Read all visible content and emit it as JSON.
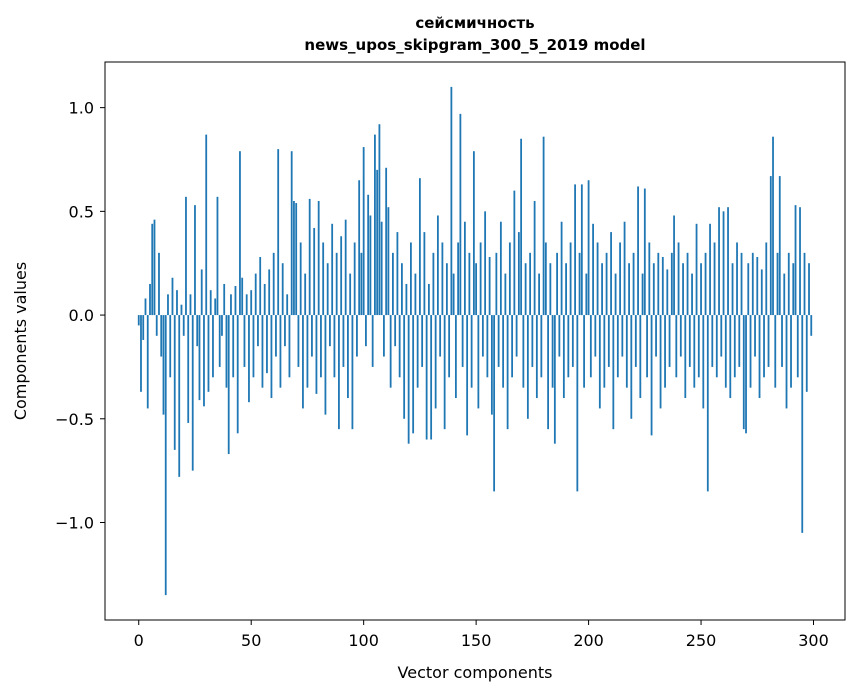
{
  "title_line1": "сейсмичность",
  "title_line2": "news_upos_skipgram_300_5_2019 model",
  "chart_data": {
    "type": "bar",
    "title": "сейсмичность\nnews_upos_skipgram_300_5_2019 model",
    "xlabel": "Vector components",
    "ylabel": "Components values",
    "xlim": [
      -15,
      314
    ],
    "ylim": [
      -1.47,
      1.22
    ],
    "x_ticks": [
      0,
      50,
      100,
      150,
      200,
      250,
      300
    ],
    "y_ticks": [
      -1.0,
      -0.5,
      0.0,
      0.5,
      1.0
    ],
    "bar_color": "#1f77b4",
    "grid": false,
    "legend": "none",
    "values": [
      -0.05,
      -0.37,
      -0.12,
      0.08,
      -0.45,
      0.15,
      0.44,
      0.46,
      -0.1,
      0.3,
      -0.2,
      -0.48,
      -1.35,
      0.1,
      -0.3,
      0.18,
      -0.65,
      0.12,
      -0.78,
      0.05,
      -0.1,
      0.57,
      -0.52,
      0.1,
      -0.75,
      0.53,
      -0.15,
      -0.41,
      0.22,
      -0.44,
      0.87,
      -0.37,
      0.12,
      -0.3,
      0.08,
      0.57,
      -0.25,
      -0.1,
      0.15,
      -0.35,
      -0.67,
      0.1,
      -0.3,
      0.14,
      -0.57,
      0.79,
      0.18,
      -0.25,
      0.1,
      -0.42,
      0.12,
      -0.3,
      0.2,
      -0.15,
      0.28,
      -0.35,
      0.15,
      -0.28,
      0.22,
      -0.4,
      0.3,
      -0.2,
      0.8,
      -0.35,
      0.25,
      -0.15,
      0.1,
      -0.3,
      0.79,
      0.55,
      0.54,
      -0.25,
      0.35,
      -0.45,
      0.2,
      -0.35,
      0.56,
      -0.2,
      0.42,
      -0.38,
      0.55,
      -0.3,
      0.35,
      -0.48,
      0.25,
      -0.15,
      0.44,
      -0.3,
      0.3,
      -0.55,
      0.38,
      -0.25,
      0.46,
      -0.4,
      0.2,
      -0.55,
      0.35,
      -0.2,
      0.65,
      0.3,
      0.81,
      -0.15,
      0.58,
      0.48,
      -0.25,
      0.87,
      0.7,
      0.92,
      0.45,
      -0.2,
      0.71,
      0.52,
      -0.35,
      0.3,
      -0.15,
      0.4,
      -0.3,
      0.25,
      -0.5,
      0.15,
      -0.62,
      0.35,
      -0.57,
      0.2,
      -0.35,
      0.66,
      -0.25,
      0.4,
      -0.6,
      0.15,
      -0.6,
      0.3,
      -0.45,
      0.48,
      -0.2,
      0.35,
      -0.55,
      0.25,
      -0.3,
      1.1,
      0.2,
      -0.4,
      0.35,
      0.97,
      -0.25,
      0.45,
      -0.58,
      0.3,
      -0.35,
      0.79,
      0.25,
      -0.45,
      0.35,
      -0.2,
      0.5,
      -0.3,
      0.28,
      -0.48,
      -0.85,
      0.3,
      -0.25,
      0.45,
      -0.35,
      0.2,
      -0.55,
      0.35,
      -0.3,
      0.6,
      -0.2,
      0.4,
      0.85,
      -0.35,
      0.25,
      -0.5,
      0.3,
      -0.25,
      0.55,
      -0.4,
      0.2,
      -0.3,
      0.86,
      0.35,
      -0.55,
      0.25,
      -0.35,
      -0.62,
      0.3,
      -0.2,
      0.45,
      -0.4,
      0.25,
      -0.3,
      0.35,
      -0.25,
      0.63,
      -0.85,
      0.3,
      0.63,
      -0.35,
      0.2,
      0.65,
      -0.3,
      0.44,
      -0.2,
      0.35,
      -0.45,
      0.25,
      -0.35,
      0.3,
      -0.25,
      0.4,
      -0.55,
      0.2,
      -0.3,
      0.35,
      -0.2,
      0.45,
      -0.35,
      0.25,
      -0.5,
      0.3,
      -0.25,
      0.62,
      -0.4,
      0.2,
      0.61,
      -0.3,
      0.35,
      -0.58,
      0.25,
      -0.2,
      0.3,
      -0.45,
      0.28,
      -0.35,
      0.22,
      -0.25,
      0.3,
      0.48,
      -0.3,
      0.35,
      -0.2,
      0.25,
      -0.4,
      0.3,
      -0.25,
      0.2,
      -0.35,
      0.44,
      -0.3,
      0.25,
      -0.45,
      0.3,
      -0.85,
      0.44,
      -0.25,
      0.35,
      -0.3,
      0.52,
      -0.2,
      0.5,
      -0.35,
      0.52,
      -0.4,
      0.25,
      -0.3,
      0.35,
      -0.25,
      0.3,
      -0.55,
      -0.57,
      0.25,
      -0.35,
      0.3,
      -0.2,
      0.28,
      -0.4,
      0.22,
      -0.3,
      0.35,
      -0.25,
      0.67,
      0.86,
      -0.35,
      0.3,
      0.67,
      -0.25,
      0.2,
      -0.45,
      0.3,
      -0.35,
      0.25,
      0.53,
      -0.3,
      0.52,
      -1.05,
      0.3,
      -0.37,
      0.25,
      -0.1
    ]
  }
}
